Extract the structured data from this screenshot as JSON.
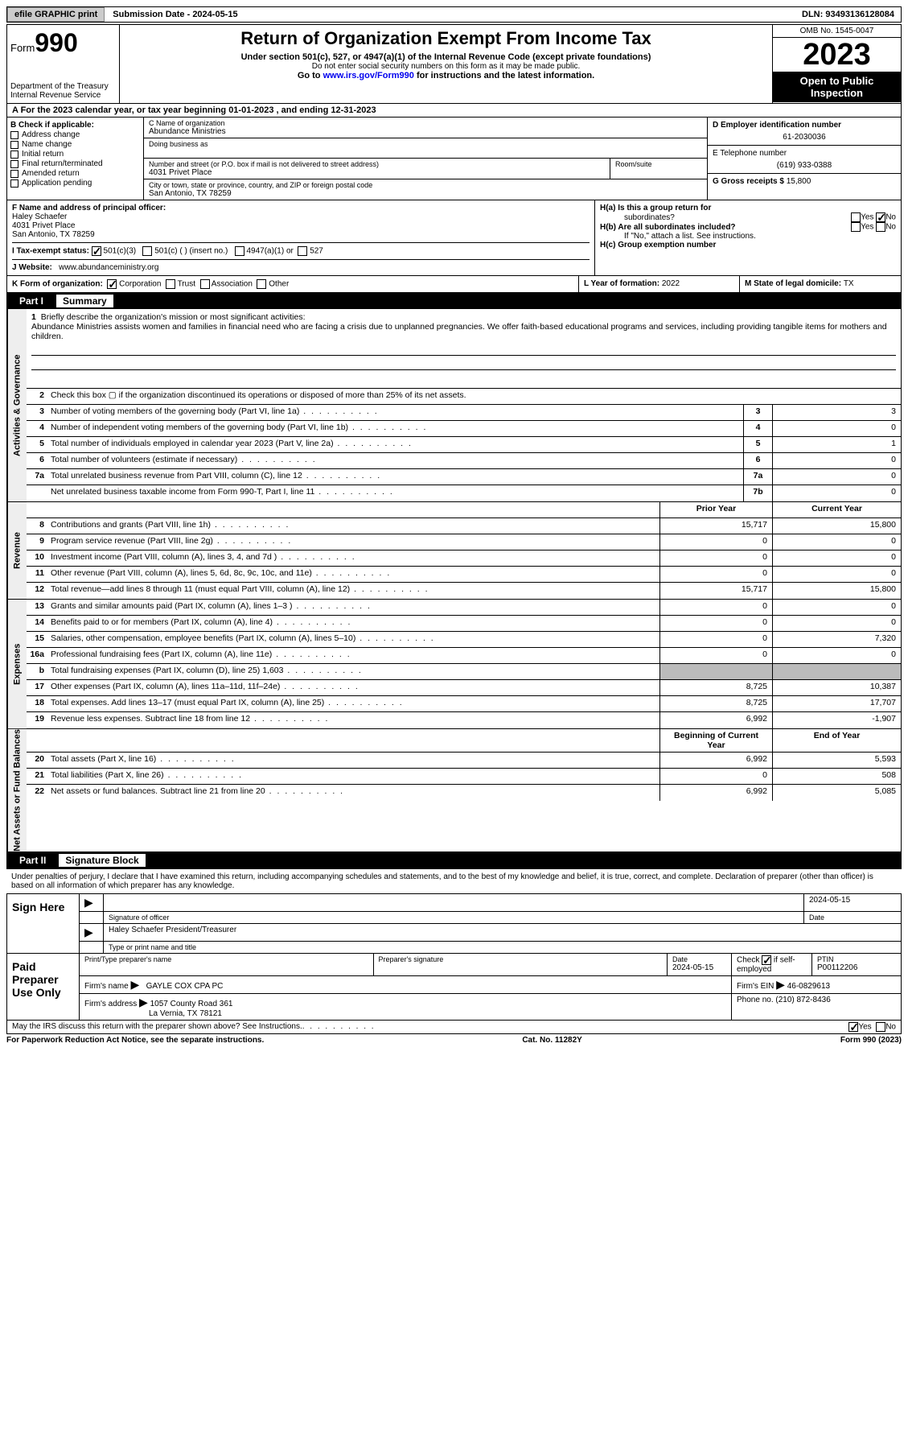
{
  "topbar": {
    "efile_btn": "efile GRAPHIC print",
    "submission_label": "Submission Date - 2024-05-15",
    "dln": "DLN: 93493136128084"
  },
  "header": {
    "form_prefix": "Form",
    "form_number": "990",
    "title": "Return of Organization Exempt From Income Tax",
    "subtitle": "Under section 501(c), 527, or 4947(a)(1) of the Internal Revenue Code (except private foundations)",
    "warning": "Do not enter social security numbers on this form as it may be made public.",
    "goto_prefix": "Go to ",
    "goto_link": "www.irs.gov/Form990",
    "goto_suffix": " for instructions and the latest information.",
    "dept": "Department of the Treasury",
    "irs": "Internal Revenue Service",
    "omb": "OMB No. 1545-0047",
    "year": "2023",
    "inspection": "Open to Public Inspection"
  },
  "section_a": "A   For the 2023 calendar year, or tax year beginning 01-01-2023    , and ending 12-31-2023",
  "col_b": {
    "header": "B Check if applicable:",
    "items": [
      "Address change",
      "Name change",
      "Initial return",
      "Final return/terminated",
      "Amended return",
      "Application pending"
    ]
  },
  "col_c": {
    "name_label": "C Name of organization",
    "name": "Abundance Ministries",
    "dba_label": "Doing business as",
    "street_label": "Number and street (or P.O. box if mail is not delivered to street address)",
    "street": "4031 Privet Place",
    "room_label": "Room/suite",
    "city_label": "City or town, state or province, country, and ZIP or foreign postal code",
    "city": "San Antonio, TX  78259"
  },
  "col_d": {
    "ein_label": "D Employer identification number",
    "ein": "61-2030036",
    "phone_label": "E Telephone number",
    "phone": "(619) 933-0388",
    "gross_label": "G Gross receipts $ ",
    "gross": "15,800"
  },
  "row_f": {
    "label": "F  Name and address of principal officer:",
    "name": "Haley Schaefer",
    "street": "4031 Privet Place",
    "city": "San Antonio, TX  78259"
  },
  "row_h": {
    "ha_label": "H(a)  Is this a group return for",
    "ha_label2": "subordinates?",
    "hb_label": "H(b)  Are all subordinates included?",
    "hb_note": "If \"No,\" attach a list. See instructions.",
    "hc_label": "H(c)  Group exemption number ",
    "yes": "Yes",
    "no": "No"
  },
  "row_i": {
    "label": "I     Tax-exempt status:",
    "opt1": "501(c)(3)",
    "opt2": "501(c) (  ) (insert no.)",
    "opt3": "4947(a)(1) or",
    "opt4": "527"
  },
  "row_j": {
    "label": "J    Website: ",
    "value": "www.abundanceministry.org"
  },
  "row_k": {
    "label": "K Form of organization:",
    "opts": [
      "Corporation",
      "Trust",
      "Association",
      "Other"
    ],
    "l_label": "L Year of formation: ",
    "l_val": "2022",
    "m_label": "M State of legal domicile: ",
    "m_val": "TX"
  },
  "part1": {
    "num": "Part I",
    "title": "Summary"
  },
  "mission": {
    "num": "1",
    "label": "Briefly describe the organization's mission or most significant activities:",
    "text": "Abundance Ministries assists women and families in financial need who are facing a crisis due to unplanned pregnancies. We offer faith-based educational programs and services, including providing tangible items for mothers and children."
  },
  "gov_rows": [
    {
      "n": "2",
      "d": "Check this box ▢ if the organization discontinued its operations or disposed of more than 25% of its net assets."
    },
    {
      "n": "3",
      "d": "Number of voting members of the governing body (Part VI, line 1a)",
      "box": "3",
      "v": "3"
    },
    {
      "n": "4",
      "d": "Number of independent voting members of the governing body (Part VI, line 1b)",
      "box": "4",
      "v": "0"
    },
    {
      "n": "5",
      "d": "Total number of individuals employed in calendar year 2023 (Part V, line 2a)",
      "box": "5",
      "v": "1"
    },
    {
      "n": "6",
      "d": "Total number of volunteers (estimate if necessary)",
      "box": "6",
      "v": "0"
    },
    {
      "n": "7a",
      "d": "Total unrelated business revenue from Part VIII, column (C), line 12",
      "box": "7a",
      "v": "0"
    },
    {
      "n": "",
      "d": "Net unrelated business taxable income from Form 990-T, Part I, line 11",
      "box": "7b",
      "v": "0"
    }
  ],
  "rev_header": {
    "prior": "Prior Year",
    "current": "Current Year"
  },
  "rev_rows": [
    {
      "n": "8",
      "d": "Contributions and grants (Part VIII, line 1h)",
      "p": "15,717",
      "c": "15,800"
    },
    {
      "n": "9",
      "d": "Program service revenue (Part VIII, line 2g)",
      "p": "0",
      "c": "0"
    },
    {
      "n": "10",
      "d": "Investment income (Part VIII, column (A), lines 3, 4, and 7d )",
      "p": "0",
      "c": "0"
    },
    {
      "n": "11",
      "d": "Other revenue (Part VIII, column (A), lines 5, 6d, 8c, 9c, 10c, and 11e)",
      "p": "0",
      "c": "0"
    },
    {
      "n": "12",
      "d": "Total revenue—add lines 8 through 11 (must equal Part VIII, column (A), line 12)",
      "p": "15,717",
      "c": "15,800"
    }
  ],
  "exp_rows": [
    {
      "n": "13",
      "d": "Grants and similar amounts paid (Part IX, column (A), lines 1–3 )",
      "p": "0",
      "c": "0"
    },
    {
      "n": "14",
      "d": "Benefits paid to or for members (Part IX, column (A), line 4)",
      "p": "0",
      "c": "0"
    },
    {
      "n": "15",
      "d": "Salaries, other compensation, employee benefits (Part IX, column (A), lines 5–10)",
      "p": "0",
      "c": "7,320"
    },
    {
      "n": "16a",
      "d": "Professional fundraising fees (Part IX, column (A), line 11e)",
      "p": "0",
      "c": "0"
    },
    {
      "n": "b",
      "d": "Total fundraising expenses (Part IX, column (D), line 25) 1,603",
      "p": "",
      "c": "",
      "grey": true
    },
    {
      "n": "17",
      "d": "Other expenses (Part IX, column (A), lines 11a–11d, 11f–24e)",
      "p": "8,725",
      "c": "10,387"
    },
    {
      "n": "18",
      "d": "Total expenses. Add lines 13–17 (must equal Part IX, column (A), line 25)",
      "p": "8,725",
      "c": "17,707"
    },
    {
      "n": "19",
      "d": "Revenue less expenses. Subtract line 18 from line 12",
      "p": "6,992",
      "c": "-1,907"
    }
  ],
  "na_header": {
    "begin": "Beginning of Current Year",
    "end": "End of Year"
  },
  "na_rows": [
    {
      "n": "20",
      "d": "Total assets (Part X, line 16)",
      "p": "6,992",
      "c": "5,593"
    },
    {
      "n": "21",
      "d": "Total liabilities (Part X, line 26)",
      "p": "0",
      "c": "508"
    },
    {
      "n": "22",
      "d": "Net assets or fund balances. Subtract line 21 from line 20",
      "p": "6,992",
      "c": "5,085"
    }
  ],
  "vtabs": {
    "gov": "Activities & Governance",
    "rev": "Revenue",
    "exp": "Expenses",
    "na": "Net Assets or Fund Balances"
  },
  "part2": {
    "num": "Part II",
    "title": "Signature Block"
  },
  "sig_text": "Under penalties of perjury, I declare that I have examined this return, including accompanying schedules and statements, and to the best of my knowledge and belief, it is true, correct, and complete. Declaration of preparer (other than officer) is based on all information of which preparer has any knowledge.",
  "sign_here": "Sign Here",
  "sig_officer": {
    "date": "2024-05-15",
    "sig_label": "Signature of officer",
    "date_label": "Date",
    "name": "Haley Schaefer  President/Treasurer",
    "name_label": "Type or print name and title"
  },
  "paid_prep": "Paid Preparer Use Only",
  "prep": {
    "name_label": "Print/Type preparer's name",
    "sig_label": "Preparer's signature",
    "date_label": "Date",
    "date": "2024-05-15",
    "check_label": "Check",
    "check_suffix": "if self-employed",
    "ptin_label": "PTIN",
    "ptin": "P00112206",
    "firm_name_label": "Firm's name ",
    "firm_name": "GAYLE COX CPA PC",
    "firm_ein_label": "Firm's EIN ",
    "firm_ein": "46-0829613",
    "firm_addr_label": "Firm's address ",
    "firm_addr1": "1057 County Road 361",
    "firm_addr2": "La Vernia, TX  78121",
    "phone_label": "Phone no. ",
    "phone": "(210) 872-8436"
  },
  "discuss": {
    "text": "May the IRS discuss this return with the preparer shown above? See Instructions.",
    "yes": "Yes",
    "no": "No"
  },
  "paperwork": {
    "left": "For Paperwork Reduction Act Notice, see the separate instructions.",
    "mid": "Cat. No. 11282Y",
    "right": "Form 990 (2023)"
  }
}
